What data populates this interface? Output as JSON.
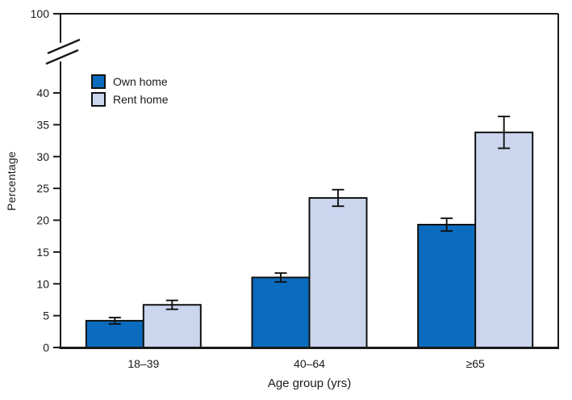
{
  "chart_data": {
    "type": "bar",
    "title": "",
    "xlabel": "Age group (yrs)",
    "ylabel": "Percentage",
    "categories": [
      "18–39",
      "40–64",
      "≥65"
    ],
    "series": [
      {
        "name": "Own home",
        "color": "#0b6cbf",
        "values": [
          4.2,
          11.0,
          19.3
        ],
        "errors": [
          0.5,
          0.7,
          1.0
        ]
      },
      {
        "name": "Rent home",
        "color": "#cbd5ee",
        "values": [
          6.7,
          23.5,
          33.8
        ],
        "errors": [
          0.7,
          1.3,
          2.5
        ]
      }
    ],
    "y_ticks": [
      0,
      5,
      10,
      15,
      20,
      25,
      30,
      35,
      40
    ],
    "y_top_tick_label": "100",
    "axis_break": true,
    "ylim": [
      0,
      40
    ],
    "grid": false,
    "legend_position": "upper-left-inside",
    "error_bars": true,
    "frame_color": "#1a1a1a",
    "bar_outline_color": "#111111"
  }
}
